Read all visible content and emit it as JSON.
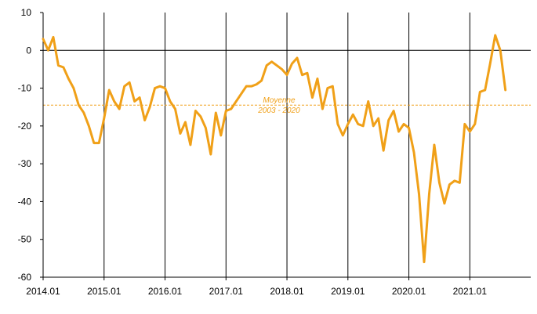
{
  "chart_data": {
    "type": "line",
    "title": "",
    "xlabel": "",
    "ylabel": "",
    "ylim": [
      -60,
      10
    ],
    "yticks": [
      10,
      0,
      -10,
      -20,
      -30,
      -40,
      -50,
      -60
    ],
    "xlim": [
      "2014.01",
      "2021.12"
    ],
    "xticks": [
      "2014.01",
      "2015.01",
      "2016.01",
      "2017.01",
      "2018.01",
      "2019.01",
      "2020.01",
      "2021.01"
    ],
    "grid": "vertical lines at each year tick",
    "line_color": "#F0A018",
    "reference": {
      "value": -14.5,
      "label_line1": "Moyenne",
      "label_line2": "2003 - 2020",
      "color": "#F0A018",
      "style": "dashed"
    },
    "series": [
      {
        "x": [
          "2014.01",
          "2014.02",
          "2014.03",
          "2014.04",
          "2014.05",
          "2014.06",
          "2014.07",
          "2014.08",
          "2014.09",
          "2014.10",
          "2014.11",
          "2014.12",
          "2015.01",
          "2015.02",
          "2015.03",
          "2015.04",
          "2015.05",
          "2015.06",
          "2015.07",
          "2015.08",
          "2015.09",
          "2015.10",
          "2015.11",
          "2015.12",
          "2016.01",
          "2016.02",
          "2016.03",
          "2016.04",
          "2016.05",
          "2016.06",
          "2016.07",
          "2016.08",
          "2016.09",
          "2016.10",
          "2016.11",
          "2016.12",
          "2017.01",
          "2017.02",
          "2017.03",
          "2017.04",
          "2017.05",
          "2017.06",
          "2017.07",
          "2017.08",
          "2017.09",
          "2017.10",
          "2017.11",
          "2017.12",
          "2018.01",
          "2018.02",
          "2018.03",
          "2018.04",
          "2018.05",
          "2018.06",
          "2018.07",
          "2018.08",
          "2018.09",
          "2018.10",
          "2018.11",
          "2018.12",
          "2019.01",
          "2019.02",
          "2019.03",
          "2019.04",
          "2019.05",
          "2019.06",
          "2019.07",
          "2019.08",
          "2019.09",
          "2019.10",
          "2019.11",
          "2019.12",
          "2020.01",
          "2020.02",
          "2020.03",
          "2020.04",
          "2020.05",
          "2020.06",
          "2020.07",
          "2020.08",
          "2020.09",
          "2020.10",
          "2020.11",
          "2020.12",
          "2021.01",
          "2021.02",
          "2021.03",
          "2021.04",
          "2021.05",
          "2021.06",
          "2021.07",
          "2021.08"
        ],
        "values": [
          3,
          0,
          3.5,
          -4,
          -4.5,
          -7.5,
          -10,
          -14.5,
          -16.5,
          -20,
          -24.5,
          -24.5,
          -18,
          -10.5,
          -13.5,
          -15.5,
          -9.5,
          -8.5,
          -13.5,
          -12.5,
          -18.5,
          -15,
          -10,
          -9.5,
          -10,
          -13.5,
          -15.5,
          -22,
          -19,
          -25,
          -16,
          -17.5,
          -20.5,
          -27.5,
          -16.5,
          -22.5,
          -16,
          -15.5,
          -13.5,
          -11.5,
          -9.5,
          -9.5,
          -9,
          -8,
          -4,
          -3,
          -4,
          -5,
          -6.5,
          -3.5,
          -2,
          -6.5,
          -6,
          -12.5,
          -7.5,
          -15.5,
          -10,
          -9.5,
          -19.5,
          -22.5,
          -19.5,
          -17,
          -19.5,
          -20,
          -13.5,
          -20,
          -18,
          -26.5,
          -18.5,
          -16,
          -21.5,
          -19.5,
          -20.5,
          -27,
          -38,
          -56,
          -38,
          -25,
          -35,
          -40.5,
          -35.5,
          -34.5,
          -35,
          -19.5,
          -21.5,
          -19.5,
          -11,
          -10.5,
          -3.5,
          4,
          0,
          -10.5
        ]
      }
    ]
  }
}
